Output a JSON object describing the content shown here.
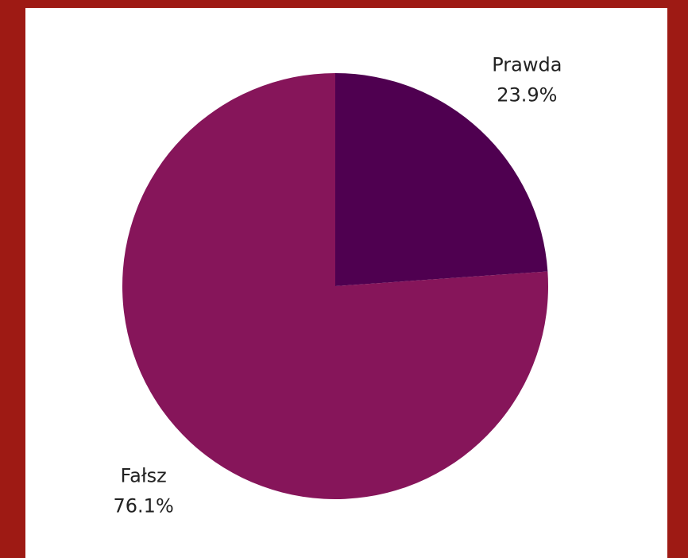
{
  "chart_data": {
    "type": "pie",
    "categories": [
      "Prawda",
      "Fałsz"
    ],
    "values": [
      23.9,
      76.1
    ],
    "value_labels": [
      "23.9%",
      "76.1%"
    ],
    "colors": [
      "#4f0050",
      "#86155a"
    ]
  }
}
